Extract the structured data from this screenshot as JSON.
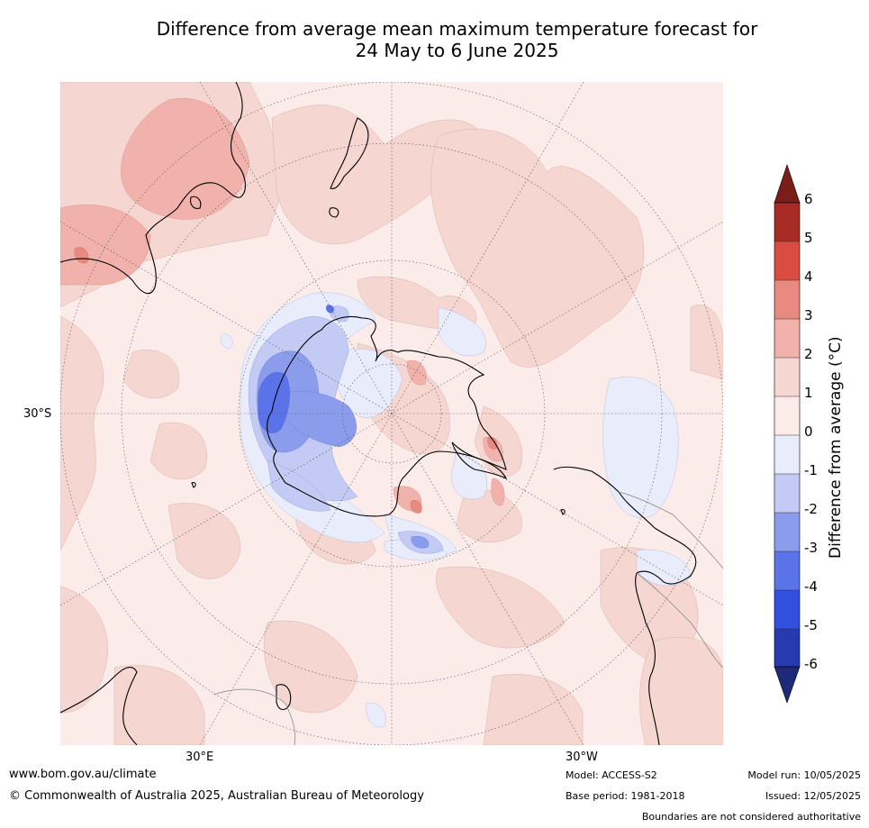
{
  "title": {
    "line1": "Difference from average mean maximum temperature forecast for",
    "line2": "24 May to 6 June 2025"
  },
  "map": {
    "projection": "south-polar-stereographic",
    "lat_labels": [
      "30°S"
    ],
    "lon_labels": [
      "30°E",
      "30°W"
    ]
  },
  "colorbar": {
    "title": "Difference from average ($^\\circ$C)",
    "title_display": "Difference from average (°C)",
    "ticks": [
      "6",
      "5",
      "4",
      "3",
      "2",
      "1",
      "0",
      "-1",
      "-2",
      "-3",
      "-4",
      "-5",
      "-6"
    ],
    "colors": {
      "above_6": "#7a1e1a",
      "5_6": "#a82b25",
      "4_5": "#d94c42",
      "3_4": "#e98a80",
      "2_3": "#f0b2aa",
      "1_2": "#f5d6d1",
      "0_1": "#fbecea",
      "m1_0": "#e9ecfb",
      "m2_m1": "#c3caf3",
      "m3_m2": "#8c9ced",
      "m4_m3": "#5a73e8",
      "m5_m4": "#3150e0",
      "m6_m5": "#263bb0",
      "below_m6": "#1d2a7a"
    }
  },
  "footer": {
    "website": "www.bom.gov.au/climate",
    "copyright": "© Commonwealth of Australia 2025, Australian Bureau of Meteorology",
    "model": "Model: ACCESS-S2",
    "base_period": "Base period: 1981-2018",
    "model_run": "Model run: 10/05/2025",
    "issued": "Issued: 12/05/2025",
    "disclaimer": "Boundaries are not considered authoritative"
  }
}
